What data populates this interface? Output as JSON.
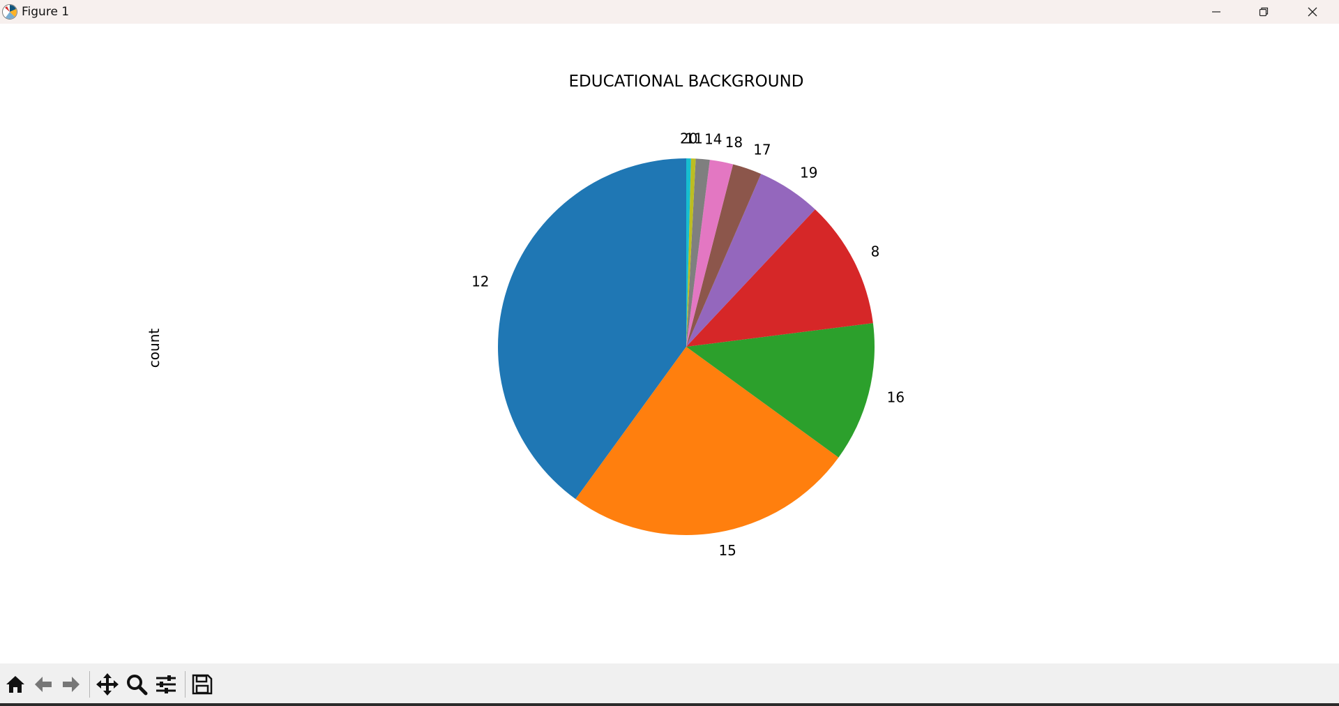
{
  "window": {
    "title": "Figure 1",
    "icons": {
      "app": "matplotlib-logo-icon",
      "minimize": "minimize-icon",
      "maximize": "restore-icon",
      "close": "close-icon"
    }
  },
  "toolbar": {
    "items": [
      {
        "name": "home-icon"
      },
      {
        "name": "back-arrow-icon"
      },
      {
        "name": "forward-arrow-icon"
      },
      {
        "name": "pan-icon"
      },
      {
        "name": "zoom-icon"
      },
      {
        "name": "configure-subplots-icon"
      },
      {
        "name": "save-icon"
      }
    ]
  },
  "chart_data": {
    "type": "pie",
    "title": "EDUCATIONAL BACKGROUND",
    "ylabel": "count",
    "start_angle_deg": 90,
    "direction": "counterclockwise",
    "slices": [
      {
        "label": "12",
        "value": 40.0,
        "color": "#1f77b4"
      },
      {
        "label": "15",
        "value": 25.0,
        "color": "#ff7f0e"
      },
      {
        "label": "16",
        "value": 12.0,
        "color": "#2ca02c"
      },
      {
        "label": "8",
        "value": 11.0,
        "color": "#d62728"
      },
      {
        "label": "19",
        "value": 5.5,
        "color": "#9467bd"
      },
      {
        "label": "17",
        "value": 2.5,
        "color": "#8c564b"
      },
      {
        "label": "18",
        "value": 2.0,
        "color": "#e377c2"
      },
      {
        "label": "14",
        "value": 1.2,
        "color": "#7f7f7f"
      },
      {
        "label": "11",
        "value": 0.4,
        "color": "#bcbd22"
      },
      {
        "label": "20",
        "value": 0.4,
        "color": "#17becf"
      }
    ]
  }
}
